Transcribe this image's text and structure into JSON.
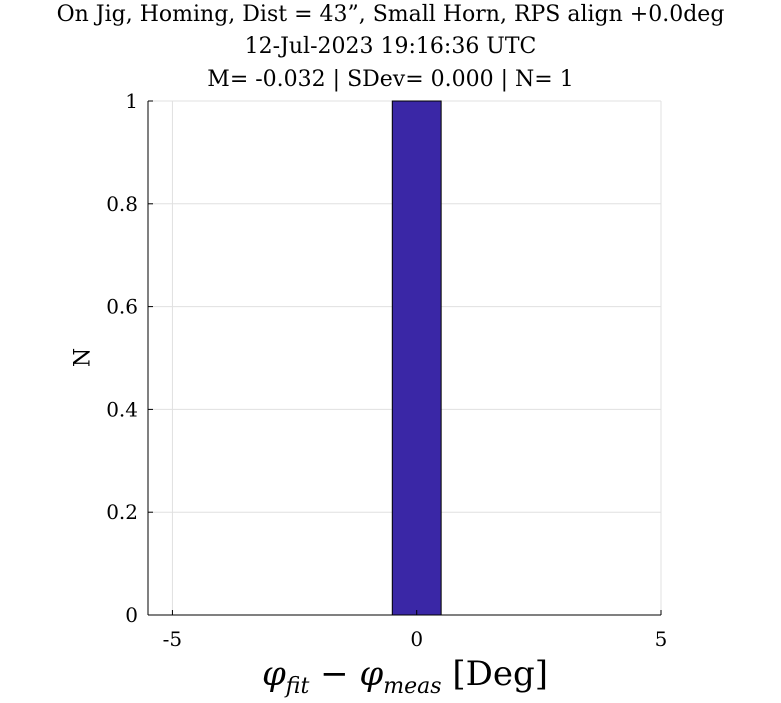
{
  "chart_data": {
    "type": "bar",
    "title_lines": [
      "On Jig, Homing, Dist = 43”, Small Horn, RPS align +0.0deg",
      "12-Jul-2023 19:16:36 UTC",
      "M= -0.032 | SDev= 0.000 | N= 1"
    ],
    "xlabel": {
      "phi": "φ",
      "sub_fit": "fit",
      "minus": " − ",
      "sub_meas": "meas",
      "unit": " [Deg]"
    },
    "ylabel": "N",
    "xlim": [
      -5.5,
      5
    ],
    "ylim": [
      0,
      1
    ],
    "xticks": [
      -5,
      0,
      5
    ],
    "xtick_labels": [
      "-5",
      "0",
      "5"
    ],
    "yticks": [
      0,
      0.2,
      0.4,
      0.6,
      0.8,
      1
    ],
    "ytick_labels": [
      "0",
      "0.2",
      "0.4",
      "0.6",
      "0.8",
      "1"
    ],
    "grid": true,
    "bins": [
      {
        "left": -0.5,
        "right": 0.5,
        "count": 1
      }
    ],
    "bar_color": "#3a27a6",
    "grid_color": "#e0e0e0"
  }
}
